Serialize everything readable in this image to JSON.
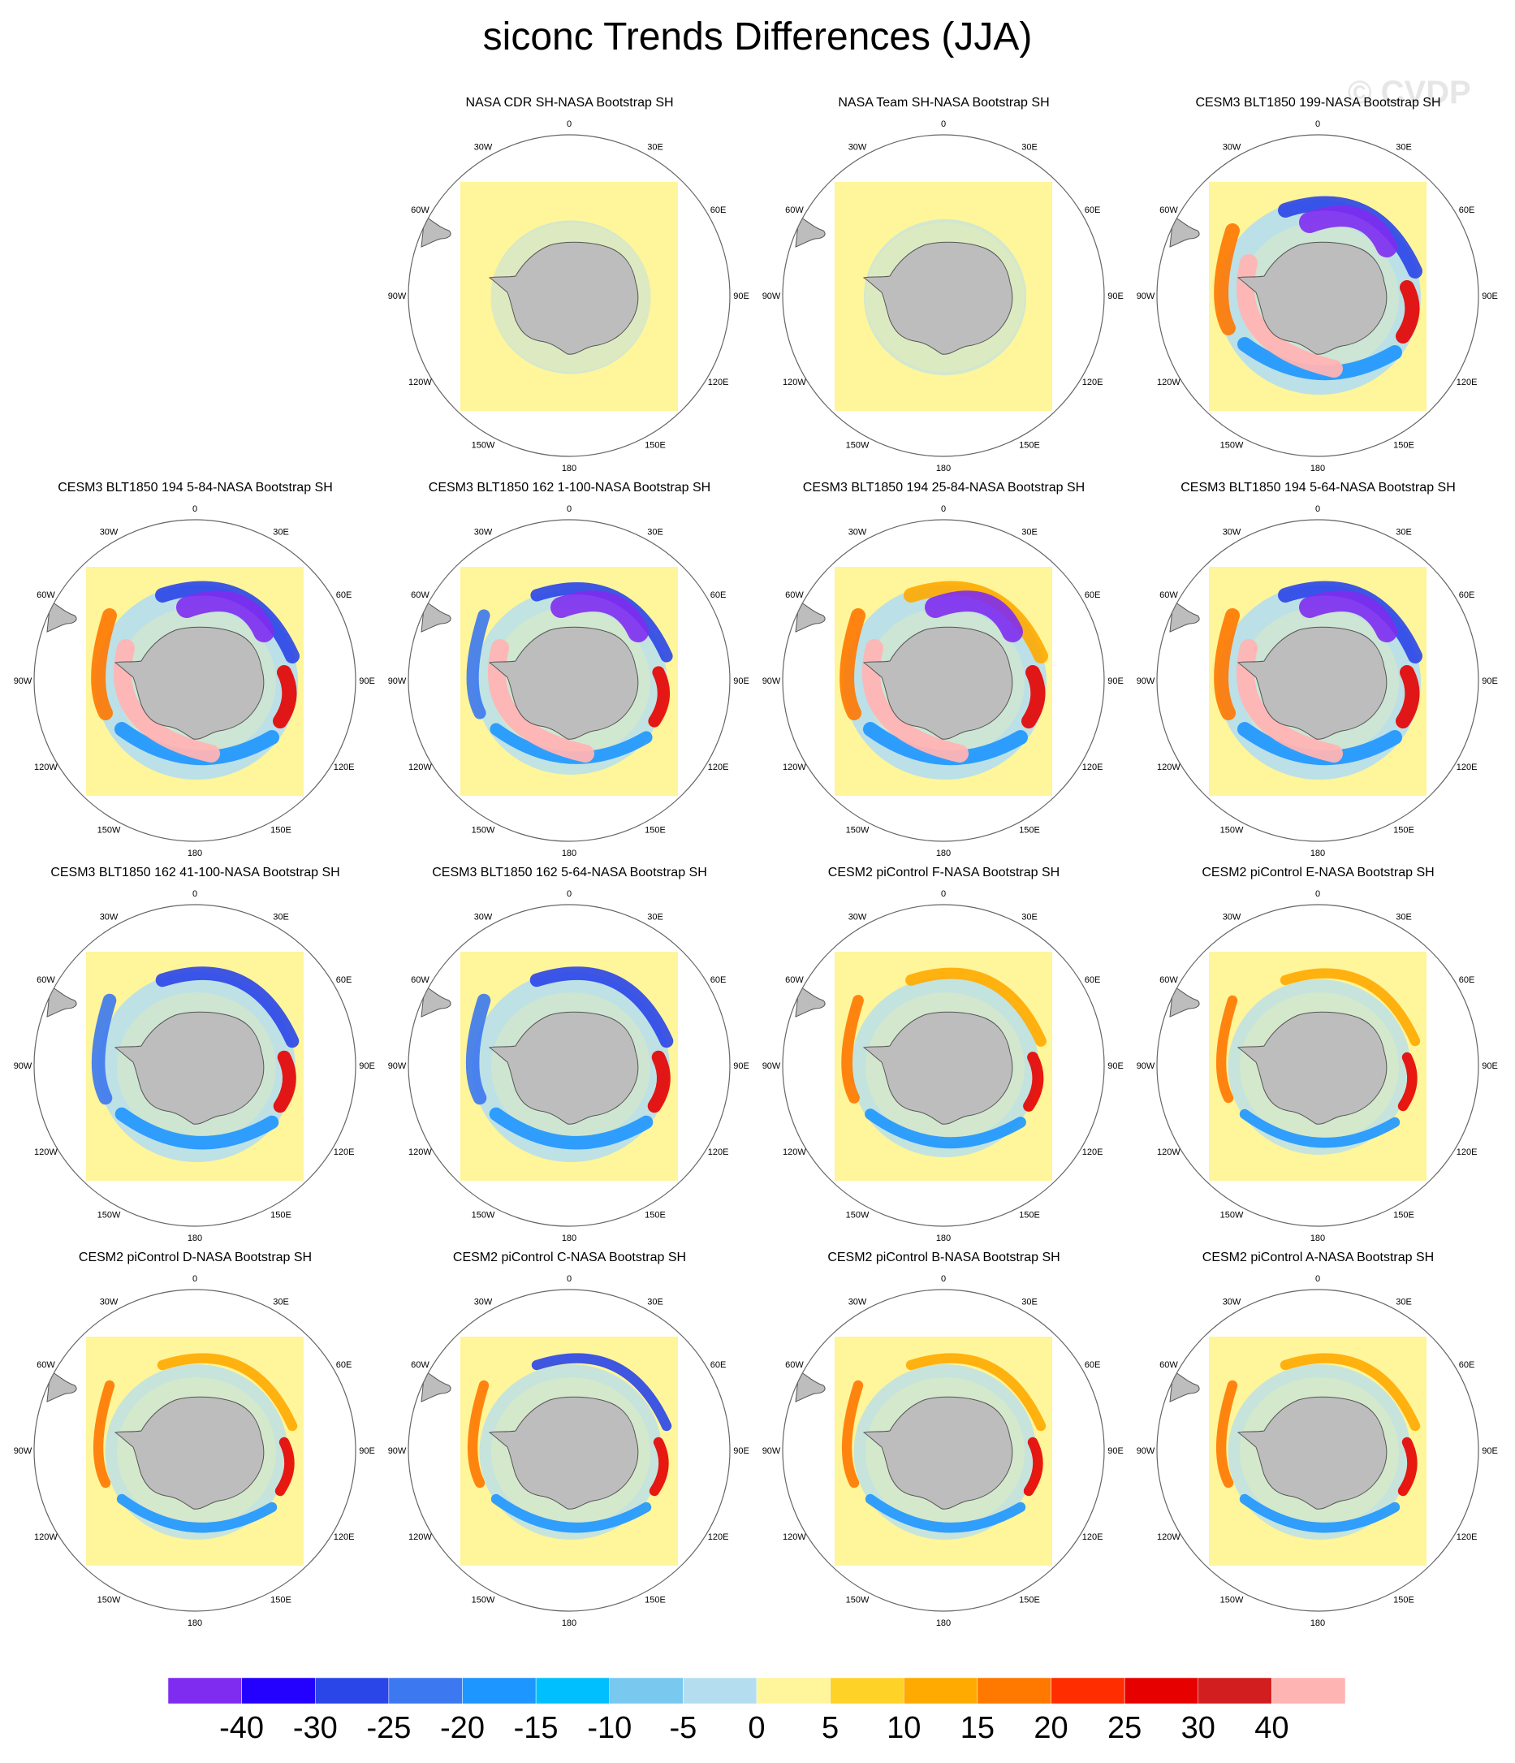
{
  "title": "siconc Trends Differences (JJA)",
  "watermark": "© CVDP",
  "lon_labels": [
    "0",
    "30E",
    "60E",
    "90E",
    "120E",
    "150E",
    "180",
    "150W",
    "120W",
    "90W",
    "60W",
    "30W"
  ],
  "panels": [
    {
      "title": "NASA CDR SH-NASA Bootstrap SH"
    },
    {
      "title": "NASA Team SH-NASA Bootstrap SH"
    },
    {
      "title": "CESM3 BLT1850 199-NASA Bootstrap SH"
    },
    {
      "title": "CESM3 BLT1850 194 5-84-NASA Bootstrap SH"
    },
    {
      "title": "CESM3 BLT1850 162 1-100-NASA Bootstrap SH"
    },
    {
      "title": "CESM3 BLT1850 194 25-84-NASA Bootstrap SH"
    },
    {
      "title": "CESM3 BLT1850 194 5-64-NASA Bootstrap SH"
    },
    {
      "title": "CESM3 BLT1850 162 41-100-NASA Bootstrap SH"
    },
    {
      "title": "CESM3 BLT1850 162 5-64-NASA Bootstrap SH"
    },
    {
      "title": "CESM2 piControl F-NASA Bootstrap SH"
    },
    {
      "title": "CESM2 piControl E-NASA Bootstrap SH"
    },
    {
      "title": "CESM2 piControl D-NASA Bootstrap SH"
    },
    {
      "title": "CESM2 piControl C-NASA Bootstrap SH"
    },
    {
      "title": "CESM2 piControl B-NASA Bootstrap SH"
    },
    {
      "title": "CESM2 piControl A-NASA Bootstrap SH"
    }
  ],
  "colorbar": {
    "labels": [
      "-40",
      "-30",
      "-25",
      "-20",
      "-15",
      "-10",
      "-5",
      "0",
      "5",
      "10",
      "15",
      "20",
      "25",
      "30",
      "40"
    ],
    "colors": [
      "#7f2cf0",
      "#2400ff",
      "#2a45e8",
      "#3c78f0",
      "#1e96ff",
      "#00bfff",
      "#78c8f0",
      "#b4def0",
      "#fff59a",
      "#ffd228",
      "#ffaa00",
      "#ff7800",
      "#ff2d00",
      "#e60000",
      "#d21e1e",
      "#ffb4b4"
    ]
  },
  "colors": {
    "land": "#bdbdbd",
    "background_field": "#fff59a",
    "weak_negative": "#b4def0",
    "strong_negative": "#7f2cf0",
    "strong_positive": "#e60000"
  }
}
